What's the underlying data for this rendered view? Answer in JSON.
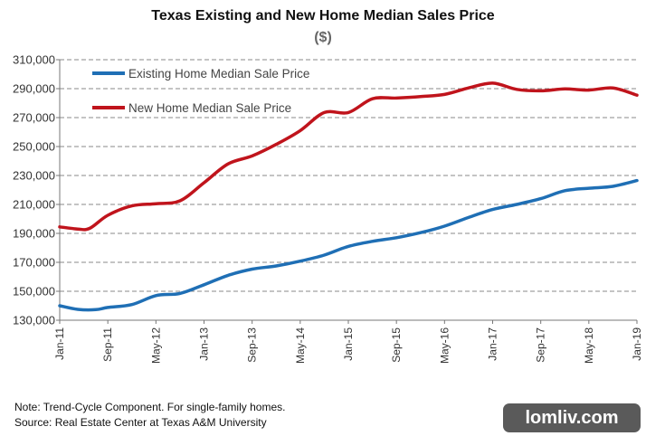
{
  "chart_data": {
    "type": "line",
    "title": "Texas Existing and New Home Median Sales Price",
    "subtitle": "($)",
    "ylim": [
      130000,
      310000
    ],
    "y_ticks": [
      "130,000",
      "150,000",
      "170,000",
      "190,000",
      "210,000",
      "230,000",
      "250,000",
      "270,000",
      "290,000",
      "310,000"
    ],
    "x_ticks": [
      "Jan-11",
      "Sep-11",
      "May-12",
      "Jan-13",
      "Sep-13",
      "May-14",
      "Jan-15",
      "Sep-15",
      "May-16",
      "Jan-17",
      "Sep-17",
      "May-18",
      "Jan-19"
    ],
    "grid": true,
    "legend_position": "top-left",
    "series": [
      {
        "name": "Existing Home Median Sale Price",
        "color": "#1f6fb5",
        "points": [
          [
            "Jan-11",
            140000
          ],
          [
            "Apr-11",
            137500
          ],
          [
            "Jul-11",
            137300
          ],
          [
            "Sep-11",
            138800
          ],
          [
            "Jan-12",
            140800
          ],
          [
            "May-12",
            147000
          ],
          [
            "Sep-12",
            148500
          ],
          [
            "Jan-13",
            154500
          ],
          [
            "May-13",
            161000
          ],
          [
            "Sep-13",
            165300
          ],
          [
            "Jan-14",
            167500
          ],
          [
            "May-14",
            170800
          ],
          [
            "Sep-14",
            175000
          ],
          [
            "Jan-15",
            181000
          ],
          [
            "May-15",
            184500
          ],
          [
            "Sep-15",
            187000
          ],
          [
            "Jan-16",
            190500
          ],
          [
            "May-16",
            195000
          ],
          [
            "Sep-16",
            201000
          ],
          [
            "Jan-17",
            206500
          ],
          [
            "May-17",
            210000
          ],
          [
            "Sep-17",
            214000
          ],
          [
            "Jan-18",
            219500
          ],
          [
            "May-18",
            221200
          ],
          [
            "Sep-18",
            222500
          ],
          [
            "Jan-19",
            226500
          ]
        ]
      },
      {
        "name": "New Home Median Sale Price",
        "color": "#c0141c",
        "points": [
          [
            "Jan-11",
            194500
          ],
          [
            "Apr-11",
            193000
          ],
          [
            "Jun-11",
            193500
          ],
          [
            "Sep-11",
            202500
          ],
          [
            "Jan-12",
            209000
          ],
          [
            "May-12",
            210500
          ],
          [
            "Sep-12",
            212500
          ],
          [
            "Jan-13",
            225000
          ],
          [
            "May-13",
            238000
          ],
          [
            "Sep-13",
            243500
          ],
          [
            "Jan-14",
            251500
          ],
          [
            "May-14",
            261000
          ],
          [
            "Sep-14",
            273500
          ],
          [
            "Jan-15",
            273500
          ],
          [
            "May-15",
            283000
          ],
          [
            "Sep-15",
            283500
          ],
          [
            "Jan-16",
            284500
          ],
          [
            "May-16",
            286000
          ],
          [
            "Sep-16",
            290500
          ],
          [
            "Jan-17",
            293800
          ],
          [
            "May-17",
            289500
          ],
          [
            "Sep-17",
            288500
          ],
          [
            "Jan-18",
            289800
          ],
          [
            "May-18",
            289000
          ],
          [
            "Sep-18",
            290500
          ],
          [
            "Jan-19",
            285500
          ]
        ]
      }
    ]
  },
  "notes": {
    "line1": "Note: Trend-Cycle Component. For single-family homes.",
    "line2": "Source: Real Estate Center at Texas A&M University"
  },
  "watermark": "lomliv.com"
}
